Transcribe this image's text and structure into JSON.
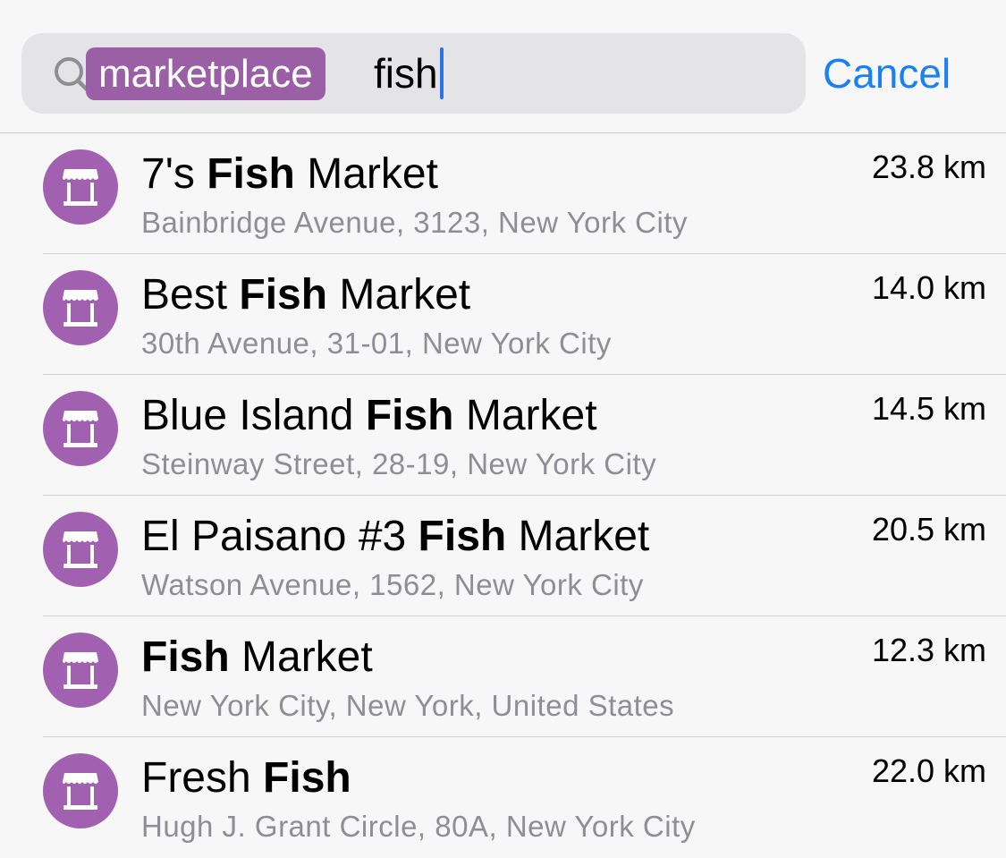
{
  "search": {
    "token_label": "marketplace",
    "query": "fish",
    "cancel_label": "Cancel"
  },
  "colors": {
    "accent": "#1b7ff5",
    "category": "#a261b0",
    "token": "#9b5fa6"
  },
  "results": [
    {
      "prefix": "7's ",
      "match": "Fish",
      "suffix": " Market",
      "address": "Bainbridge Avenue, 3123, New York City",
      "distance": "23.8 km",
      "icon": "market-stall-icon"
    },
    {
      "prefix": "Best ",
      "match": "Fish",
      "suffix": " Market",
      "address": "30th Avenue, 31-01, New York City",
      "distance": "14.0 km",
      "icon": "market-stall-icon"
    },
    {
      "prefix": "Blue Island ",
      "match": "Fish",
      "suffix": " Market",
      "address": "Steinway Street, 28-19, New York City",
      "distance": "14.5 km",
      "icon": "market-stall-icon"
    },
    {
      "prefix": "El Paisano #3 ",
      "match": "Fish",
      "suffix": " Market",
      "address": "Watson Avenue, 1562, New York City",
      "distance": "20.5 km",
      "icon": "market-stall-icon"
    },
    {
      "prefix": "",
      "match": "Fish",
      "suffix": " Market",
      "address": "New York City, New York, United States",
      "distance": "12.3 km",
      "icon": "market-stall-icon"
    },
    {
      "prefix": "Fresh ",
      "match": "Fish",
      "suffix": "",
      "address": "Hugh J. Grant Circle, 80A, New York City",
      "distance": "22.0 km",
      "icon": "market-stall-icon"
    }
  ]
}
